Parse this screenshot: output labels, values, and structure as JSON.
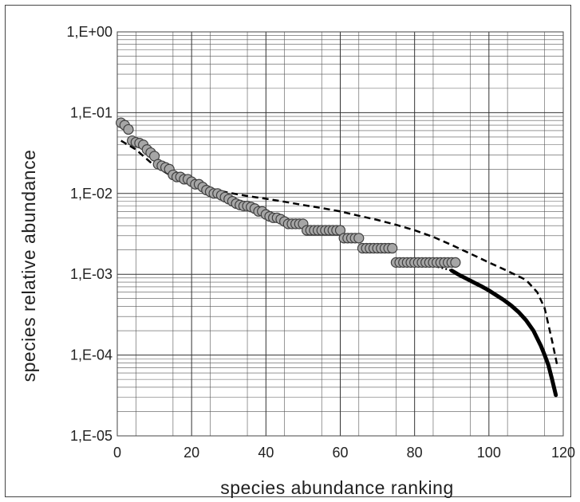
{
  "chart_data": {
    "type": "scatter",
    "title": "",
    "xlabel": "species  abundance  ranking",
    "ylabel": "species  relative  abundance",
    "xlim": [
      0,
      120
    ],
    "ylim": [
      1e-05,
      1
    ],
    "y_scale": "log",
    "x_ticks": [
      0,
      20,
      40,
      60,
      80,
      100,
      120
    ],
    "x_tick_labels": [
      "0",
      "20",
      "40",
      "60",
      "80",
      "100",
      "120"
    ],
    "y_ticks": [
      1,
      0.1,
      0.01,
      0.001,
      0.0001,
      1e-05
    ],
    "y_tick_labels": [
      "1,E+00",
      "1,E-01",
      "1,E-02",
      "1,E-03",
      "1,E-04",
      "1,E-05"
    ],
    "grid": true,
    "legend": "none",
    "colors": {
      "points_fill": "#a6a6a6",
      "points_edge": "#404040",
      "lines": "#000000",
      "grid": "#555555"
    },
    "series": [
      {
        "style": "markers",
        "x": [
          1,
          2,
          3,
          4,
          5,
          6,
          7,
          8,
          9,
          10,
          11,
          12,
          13,
          14,
          15,
          16,
          17,
          18,
          19,
          20,
          21,
          22,
          23,
          24,
          25,
          26,
          27,
          28,
          29,
          30,
          31,
          32,
          33,
          34,
          35,
          36,
          37,
          38,
          39,
          40,
          41,
          42,
          43,
          44,
          45,
          46,
          47,
          48,
          49,
          50,
          51,
          52,
          53,
          54,
          55,
          56,
          57,
          58,
          59,
          60,
          61,
          62,
          63,
          64,
          65,
          66,
          67,
          68,
          69,
          70,
          71,
          72,
          73,
          74,
          75,
          76,
          77,
          78,
          79,
          80,
          81,
          82,
          83,
          84,
          85,
          86,
          87,
          88,
          89,
          90,
          91
        ],
        "y": [
          0.075,
          0.07,
          0.062,
          0.045,
          0.043,
          0.042,
          0.04,
          0.035,
          0.032,
          0.029,
          0.023,
          0.022,
          0.021,
          0.02,
          0.017,
          0.016,
          0.016,
          0.015,
          0.015,
          0.014,
          0.013,
          0.013,
          0.012,
          0.011,
          0.0105,
          0.01,
          0.01,
          0.0095,
          0.009,
          0.0085,
          0.008,
          0.0075,
          0.0072,
          0.007,
          0.007,
          0.0068,
          0.0065,
          0.006,
          0.006,
          0.0055,
          0.0052,
          0.005,
          0.005,
          0.0048,
          0.0045,
          0.0042,
          0.0042,
          0.0042,
          0.0042,
          0.0042,
          0.0035,
          0.0035,
          0.0035,
          0.0035,
          0.0035,
          0.0035,
          0.0035,
          0.0035,
          0.0035,
          0.0035,
          0.0028,
          0.0028,
          0.0028,
          0.0028,
          0.0028,
          0.0021,
          0.0021,
          0.0021,
          0.0021,
          0.0021,
          0.0021,
          0.0021,
          0.0021,
          0.0021,
          0.0014,
          0.0014,
          0.0014,
          0.0014,
          0.0014,
          0.0014,
          0.0014,
          0.0014,
          0.0014,
          0.0014,
          0.0014,
          0.0014,
          0.0014,
          0.0014,
          0.0014,
          0.0014,
          0.0014
        ]
      },
      {
        "style": "dashed",
        "x": [
          1,
          5,
          10,
          15,
          20,
          25,
          30,
          35,
          40,
          45,
          50,
          55,
          60,
          65,
          70,
          75,
          80,
          85,
          90,
          95,
          100,
          105,
          110,
          113,
          115,
          117,
          118.5
        ],
        "y": [
          0.045,
          0.035,
          0.022,
          0.016,
          0.0135,
          0.0115,
          0.0102,
          0.0093,
          0.0086,
          0.0079,
          0.0072,
          0.0066,
          0.006,
          0.0053,
          0.0047,
          0.0041,
          0.0035,
          0.0029,
          0.0023,
          0.0018,
          0.0014,
          0.0011,
          0.00085,
          0.0006,
          0.00038,
          0.00015,
          7e-05
        ]
      },
      {
        "style": "dotted",
        "x": [
          82,
          84,
          86,
          88,
          90
        ],
        "y": [
          0.00135,
          0.0013,
          0.00124,
          0.00118,
          0.00111
        ]
      },
      {
        "style": "solid",
        "x": [
          90,
          92,
          94,
          96,
          98,
          100,
          102,
          104,
          106,
          108,
          110,
          112,
          114,
          115,
          116,
          117,
          118
        ],
        "y": [
          0.00111,
          0.00098,
          0.00088,
          0.00079,
          0.00071,
          0.00063,
          0.00055,
          0.00048,
          0.00041,
          0.00034,
          0.00027,
          0.0002,
          0.00013,
          0.0001,
          7.5e-05,
          5e-05,
          3.2e-05
        ]
      }
    ]
  }
}
